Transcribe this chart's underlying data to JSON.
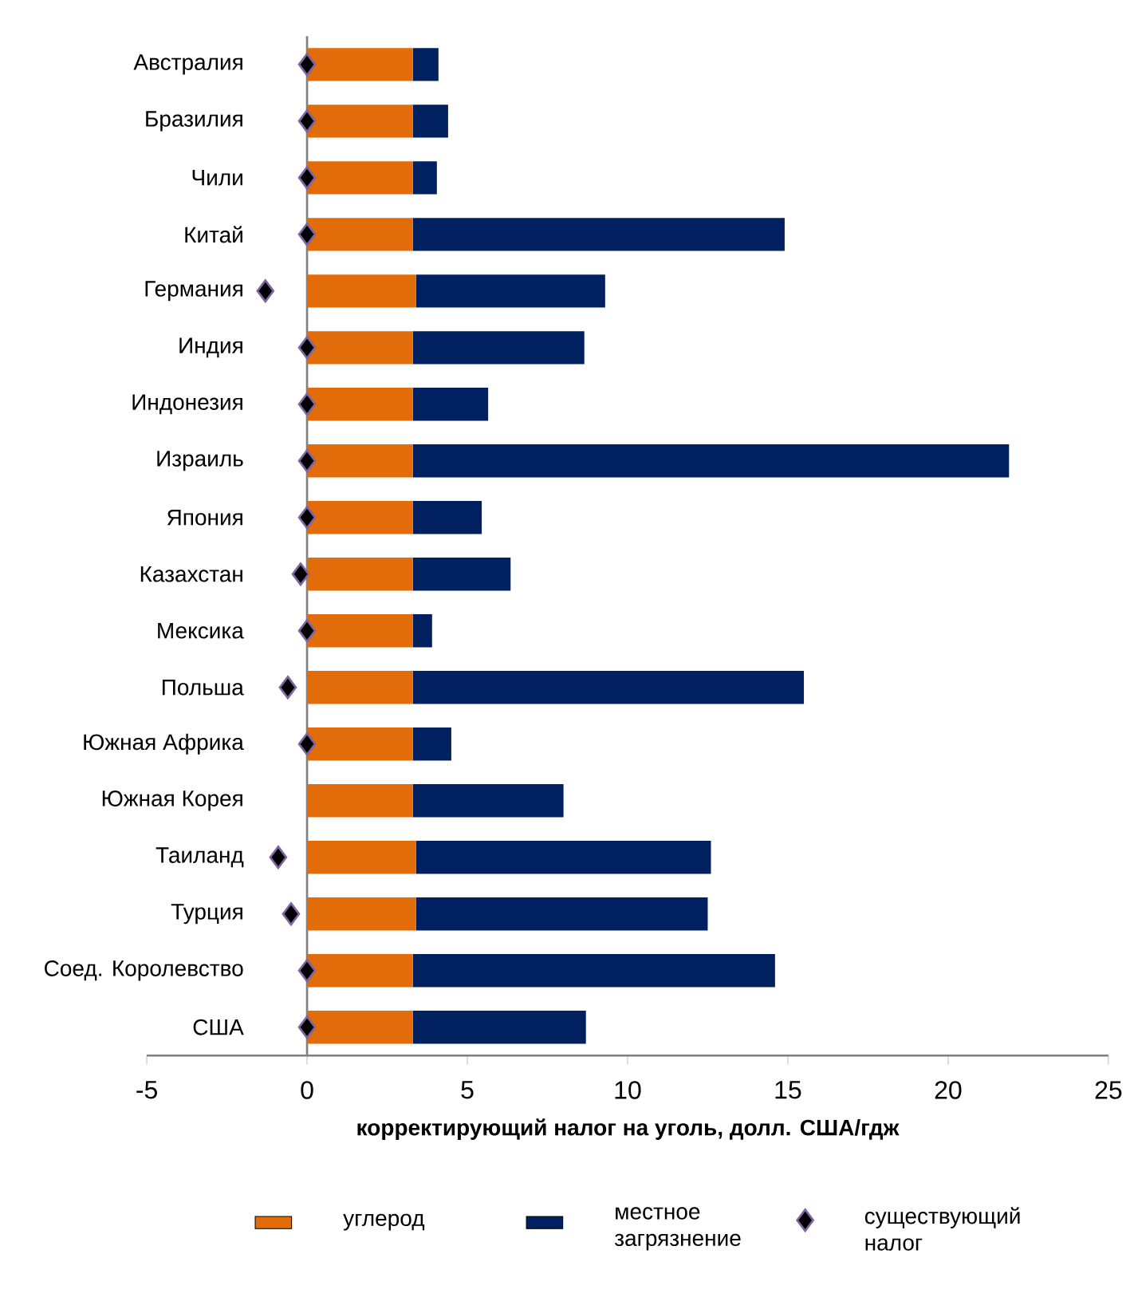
{
  "chart_data": {
    "type": "bar",
    "orientation": "horizontal",
    "stacked": true,
    "categories": [
      "Австралия",
      "Бразилия",
      "Чили",
      "Китай",
      "Германия",
      "Индия",
      "Индонезия",
      "Израиль",
      "Япония",
      "Казахстан",
      "Мексика",
      "Польша",
      "Южная Африка",
      "Южная Корея",
      "Таиланд",
      "Турция",
      "Соед. Королевство",
      "США"
    ],
    "series": [
      {
        "name": "углерод",
        "color": "#e36c0a",
        "values": [
          3.3,
          3.3,
          3.3,
          3.3,
          3.4,
          3.3,
          3.3,
          3.3,
          3.3,
          3.3,
          3.3,
          3.3,
          3.3,
          3.3,
          3.4,
          3.4,
          3.3,
          3.3
        ]
      },
      {
        "name": "местное загрязнение",
        "color": "#002060",
        "values": [
          0.8,
          1.1,
          0.75,
          11.6,
          5.9,
          5.35,
          2.35,
          18.6,
          2.15,
          3.05,
          0.6,
          12.2,
          1.2,
          4.7,
          9.2,
          9.1,
          11.3,
          5.4
        ]
      },
      {
        "name": "существующий налог",
        "type": "scatter",
        "marker": "diamond",
        "color": "#000000",
        "values": [
          0,
          0,
          0,
          0,
          -1.3,
          0,
          0,
          0,
          0,
          -0.2,
          0,
          -0.6,
          0,
          null,
          -0.9,
          -0.5,
          0,
          0
        ]
      }
    ],
    "xlabel": "корректирующий налог на уголь, долл. США/гдж",
    "xlim": [
      -5,
      25
    ],
    "xticks": [
      -5,
      0,
      5,
      10,
      15,
      20,
      25
    ],
    "legend": "bottom"
  }
}
